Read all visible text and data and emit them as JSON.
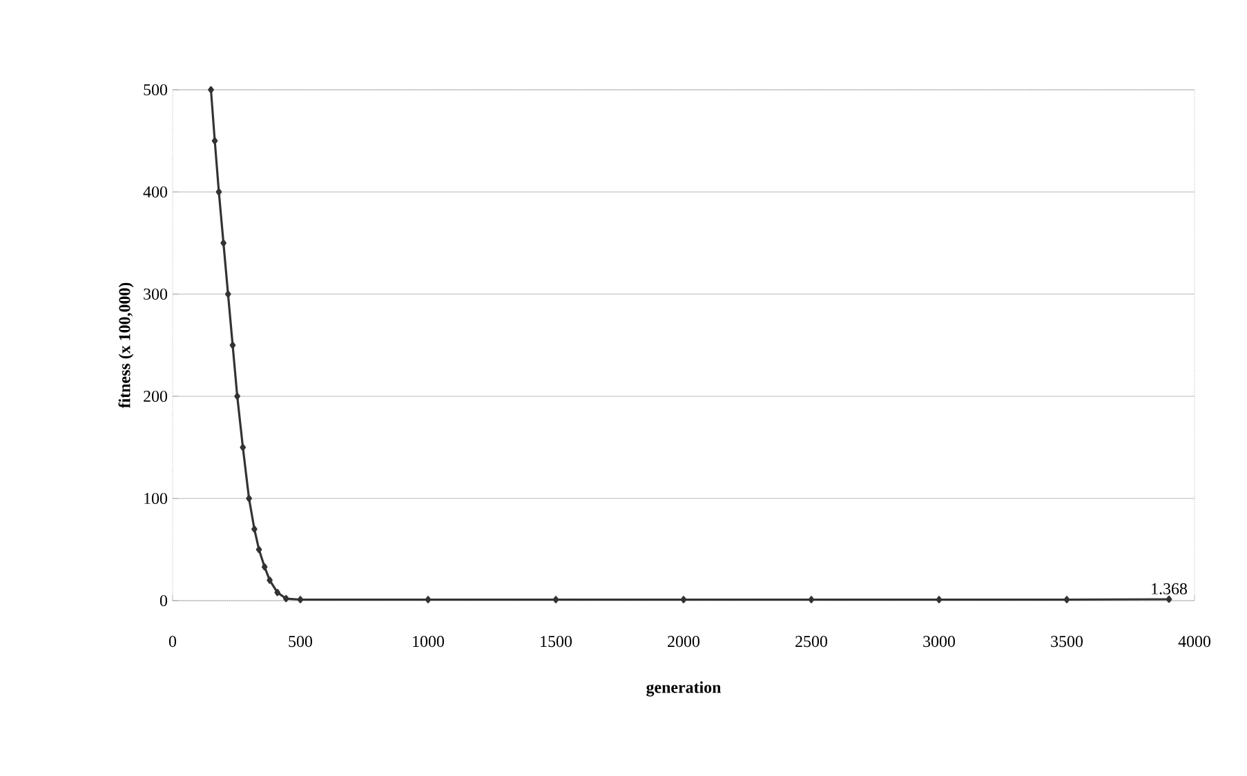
{
  "chart_data": {
    "type": "line",
    "xlabel": "generation",
    "ylabel": "fitness (x 100,000)",
    "x": [
      150,
      165,
      181,
      199,
      217,
      235,
      253,
      275,
      299,
      320,
      338,
      360,
      380,
      410,
      444,
      500,
      1000,
      1500,
      2000,
      2500,
      3000,
      3500,
      3900
    ],
    "values": [
      500,
      450,
      400,
      350,
      300,
      250,
      200,
      150,
      100,
      70,
      50,
      33,
      20,
      8,
      2,
      1,
      1,
      1,
      1,
      1,
      1,
      1,
      1.368
    ],
    "value_labels": [
      null,
      null,
      null,
      null,
      null,
      null,
      null,
      null,
      null,
      null,
      null,
      null,
      null,
      null,
      null,
      null,
      null,
      null,
      null,
      null,
      null,
      null,
      "1.368"
    ],
    "color": "#333333",
    "xlim": [
      0,
      4000
    ],
    "xticks": [
      0,
      500,
      1000,
      1500,
      2000,
      2500,
      3000,
      3500,
      4000
    ],
    "ylim": [
      0,
      500
    ],
    "yticks": [
      0,
      100,
      200,
      300,
      400,
      500
    ],
    "grid": "y",
    "marker": "diamond",
    "line_style": "solid"
  }
}
